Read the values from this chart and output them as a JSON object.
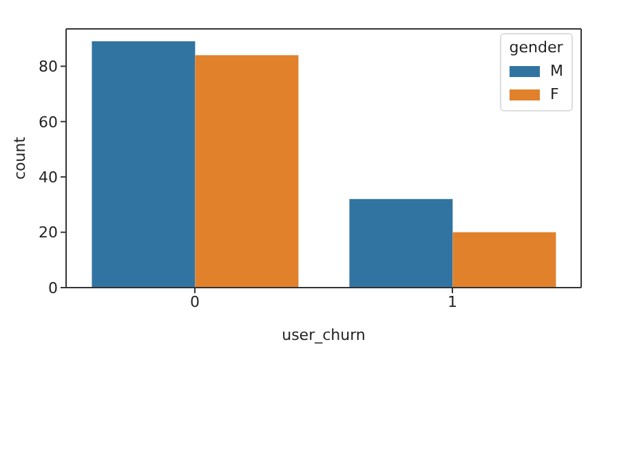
{
  "chart_data": {
    "type": "bar",
    "xlabel": "user_churn",
    "ylabel": "count",
    "legend_title": "gender",
    "categories": [
      "0",
      "1"
    ],
    "series": [
      {
        "name": "M",
        "color": "#3274a1",
        "values": [
          89,
          32
        ]
      },
      {
        "name": "F",
        "color": "#e1812c",
        "values": [
          84,
          20
        ]
      }
    ],
    "ylim": [
      0,
      93.5
    ],
    "yticks": [
      0,
      20,
      40,
      60,
      80
    ],
    "legend": "top right"
  }
}
